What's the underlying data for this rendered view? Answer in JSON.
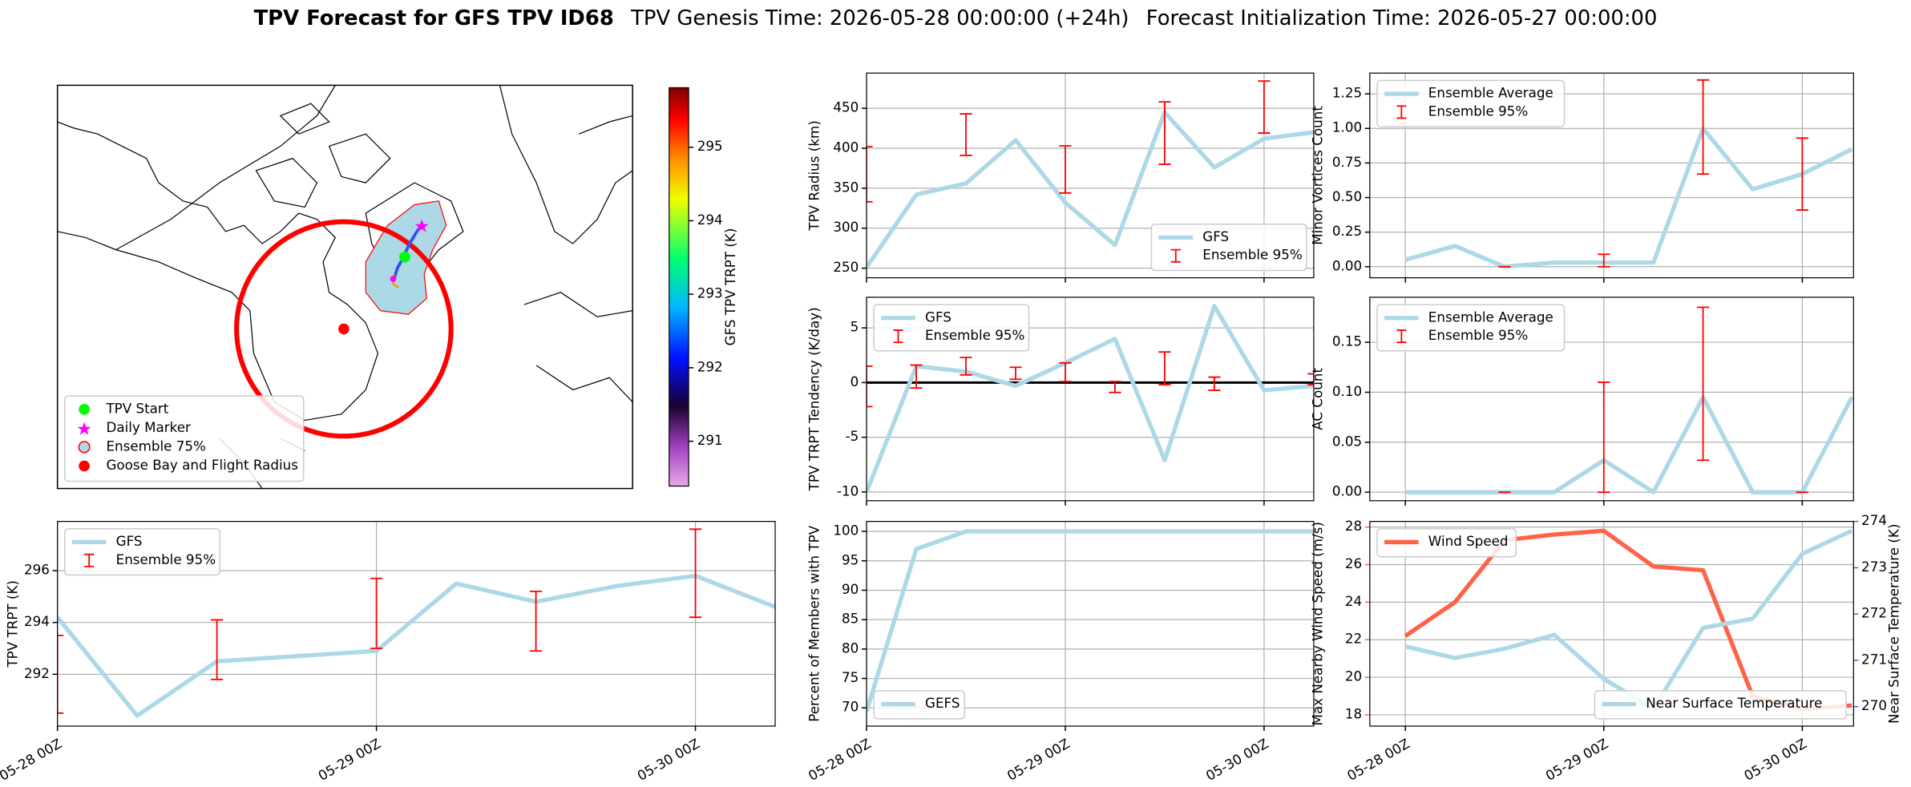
{
  "suptitle": [
    "TPV Forecast for GFS TPV ID68",
    "TPV Genesis Time: 2026-05-28 00:00:00 (+24h)",
    "Forecast Initialization Time: 2026-05-27 00:00:00"
  ],
  "chart_data": [
    {
      "type": "map",
      "legend": [
        "TPV Start",
        "Daily Marker",
        "Ensemble 75%",
        "Goose Bay and Flight Radius"
      ],
      "cbar_label": "GFS TPV TRPT (K)",
      "cbar_lim": [
        290.39,
        295.81
      ],
      "cbar_ticks": [
        291,
        292,
        293,
        294,
        295
      ]
    },
    {
      "type": "line",
      "ylabel": "TPV TRPT (K)",
      "grid": true,
      "legend": "upper left",
      "x": [
        0,
        6,
        12,
        18,
        24,
        30,
        36,
        42,
        48,
        54
      ],
      "xlim": [
        0,
        54
      ],
      "xticks": [
        {
          "value": 0,
          "label": "05-28 00Z"
        },
        {
          "value": 24,
          "label": "05-29 00Z"
        },
        {
          "value": 48,
          "label": "05-30 00Z"
        }
      ],
      "ylim": [
        290.0,
        297.9
      ],
      "yticks": [
        292,
        294,
        296
      ],
      "series": [
        {
          "name": "GFS",
          "type": "line",
          "color": "#add8e6",
          "values": [
            294.2,
            290.4,
            292.5,
            292.7,
            292.9,
            295.5,
            294.8,
            295.4,
            295.8,
            294.6
          ]
        },
        {
          "name": "Ensemble 95%",
          "type": "errorbar",
          "color": "#ff0000",
          "low": [
            290.5,
            null,
            291.8,
            null,
            293.0,
            null,
            292.9,
            null,
            294.2,
            null
          ],
          "high": [
            293.5,
            null,
            294.1,
            null,
            295.7,
            null,
            295.2,
            null,
            297.6,
            null
          ]
        }
      ]
    },
    {
      "type": "line",
      "ylabel": "TPV Radius (km)",
      "grid": true,
      "legend": "lower right",
      "x": [
        0,
        6,
        12,
        18,
        24,
        30,
        36,
        42,
        48,
        54
      ],
      "xlim": [
        0,
        54
      ],
      "xticks": [
        0,
        24,
        48
      ],
      "ylim": [
        238,
        494
      ],
      "yticks": [
        250,
        300,
        350,
        400,
        450
      ],
      "series": [
        {
          "name": "GFS",
          "type": "line",
          "color": "#add8e6",
          "values": [
            251,
            342,
            356,
            410,
            332,
            279,
            445,
            376,
            412,
            420
          ]
        },
        {
          "name": "Ensemble 95%",
          "type": "errorbar",
          "color": "#ff0000",
          "low": [
            333,
            null,
            391,
            null,
            344,
            null,
            380,
            null,
            419,
            null
          ],
          "high": [
            402,
            null,
            443,
            null,
            403,
            null,
            458,
            null,
            484,
            null
          ]
        }
      ]
    },
    {
      "type": "line",
      "ylabel": "TPV TRPT Tendency (K/day)",
      "grid": true,
      "legend": "upper left",
      "hline": 0,
      "x": [
        0,
        6,
        12,
        18,
        24,
        30,
        36,
        42,
        48,
        54
      ],
      "xlim": [
        0,
        54
      ],
      "xticks": [
        0,
        24,
        48
      ],
      "ylim": [
        -10.8,
        7.8
      ],
      "yticks": [
        -10,
        -5,
        0,
        5
      ],
      "series": [
        {
          "name": "GFS",
          "type": "line",
          "color": "#add8e6",
          "values": [
            -10,
            1.5,
            1.0,
            -0.3,
            1.8,
            4.0,
            -7.1,
            7.0,
            -0.7,
            -0.3
          ]
        },
        {
          "name": "Ensemble 95%",
          "type": "errorbar",
          "color": "#ff0000",
          "low": [
            -2.2,
            -0.5,
            0.7,
            0.3,
            0.1,
            -0.9,
            -0.2,
            -0.7,
            null,
            -0.2
          ],
          "high": [
            1.5,
            1.6,
            2.3,
            1.4,
            1.8,
            0.1,
            2.8,
            0.5,
            null,
            0.8
          ]
        }
      ]
    },
    {
      "type": "line",
      "ylabel": "Percent of Members with TPV",
      "grid": true,
      "legend": "lower left",
      "x": [
        0,
        6,
        12,
        18,
        24,
        30,
        36,
        42,
        48,
        54
      ],
      "xlim": [
        0,
        54
      ],
      "xticks": [
        {
          "value": 0,
          "label": "05-28 00Z"
        },
        {
          "value": 24,
          "label": "05-29 00Z"
        },
        {
          "value": 48,
          "label": "05-30 00Z"
        }
      ],
      "ylim": [
        66.9,
        101.7
      ],
      "yticks": [
        70,
        75,
        80,
        85,
        90,
        95,
        100
      ],
      "series": [
        {
          "name": "GEFS",
          "type": "line",
          "color": "#add8e6",
          "values": [
            69.4,
            97,
            100,
            100,
            100,
            100,
            100,
            100,
            100,
            100
          ]
        }
      ]
    },
    {
      "type": "line",
      "ylabel": "Minor Vortices Count",
      "grid": true,
      "legend": "upper left",
      "x": [
        0,
        6,
        12,
        18,
        24,
        30,
        36,
        42,
        48,
        54
      ],
      "xlim": [
        -4.3,
        54.2
      ],
      "xticks": [
        0,
        24,
        48
      ],
      "ylim": [
        -0.08,
        1.4
      ],
      "yticks": [
        {
          "value": 0,
          "label": "0.00"
        },
        {
          "value": 0.25,
          "label": "0.25"
        },
        {
          "value": 0.5,
          "label": "0.50"
        },
        {
          "value": 0.75,
          "label": "0.75"
        },
        {
          "value": 1,
          "label": "1.00"
        },
        {
          "value": 1.25,
          "label": "1.25"
        }
      ],
      "series": [
        {
          "name": "Ensemble Average",
          "type": "line",
          "color": "#add8e6",
          "values": [
            0.05,
            0.15,
            0.0,
            0.03,
            0.03,
            0.03,
            1.0,
            0.56,
            0.67,
            0.85
          ]
        },
        {
          "name": "Ensemble 95%",
          "type": "errorbar",
          "color": "#ff0000",
          "low": [
            null,
            null,
            0,
            null,
            0,
            null,
            0.67,
            null,
            0.41,
            null
          ],
          "high": [
            null,
            null,
            0,
            null,
            0.09,
            null,
            1.35,
            null,
            0.93,
            null
          ]
        }
      ]
    },
    {
      "type": "line",
      "ylabel": "AC Count",
      "grid": true,
      "legend": "upper left",
      "x": [
        0,
        6,
        12,
        18,
        24,
        30,
        36,
        42,
        48,
        54
      ],
      "xlim": [
        -4.3,
        54.2
      ],
      "xticks": [
        0,
        24,
        48
      ],
      "ylim": [
        -0.0085,
        0.195
      ],
      "yticks": [
        {
          "value": 0,
          "label": "0.00"
        },
        {
          "value": 0.05,
          "label": "0.05"
        },
        {
          "value": 0.1,
          "label": "0.10"
        },
        {
          "value": 0.15,
          "label": "0.15"
        }
      ],
      "series": [
        {
          "name": "Ensemble Average",
          "type": "line",
          "color": "#add8e6",
          "values": [
            0,
            0,
            0,
            0,
            0.032,
            0,
            0.095,
            0,
            0,
            0.095
          ]
        },
        {
          "name": "Ensemble 95%",
          "type": "errorbar",
          "color": "#ff0000",
          "low": [
            null,
            null,
            0,
            null,
            0,
            null,
            0.032,
            null,
            0,
            null
          ],
          "high": [
            null,
            null,
            0,
            null,
            0.11,
            null,
            0.185,
            null,
            0,
            null
          ]
        }
      ]
    },
    {
      "type": "line",
      "ylabel": "Max Nearby Wind Speed (m/s)",
      "y2label": "Near Surface Temperature (K)",
      "ycolor": "#f4694d",
      "y2color": "#4169e1",
      "grid": true,
      "legend": "upper left",
      "x": [
        0,
        6,
        12,
        18,
        24,
        30,
        36,
        42,
        48,
        54
      ],
      "xlim": [
        -4.3,
        54.2
      ],
      "xticks": [
        {
          "value": 0,
          "label": "05-28 00Z"
        },
        {
          "value": 24,
          "label": "05-29 00Z"
        },
        {
          "value": 48,
          "label": "05-30 00Z"
        }
      ],
      "ylim": [
        17.4,
        28.3
      ],
      "yticks": [
        18,
        20,
        22,
        24,
        26,
        28
      ],
      "y2lim": [
        269.58,
        274.0
      ],
      "y2ticks": [
        270,
        271,
        272,
        273,
        274
      ],
      "series": [
        {
          "name": "Wind Speed",
          "type": "line",
          "color": "#ff6347",
          "values": [
            22.2,
            24.0,
            27.3,
            27.6,
            27.8,
            25.9,
            25.7,
            19.0,
            18.3,
            18.5
          ]
        },
        {
          "name": "Near Surface Temperature",
          "type": "line",
          "axis": "y2",
          "legend": "lower right",
          "color": "#add8e6",
          "values": [
            271.3,
            271.05,
            271.25,
            271.55,
            270.6,
            269.95,
            271.7,
            271.9,
            273.3,
            273.8
          ]
        }
      ]
    }
  ]
}
